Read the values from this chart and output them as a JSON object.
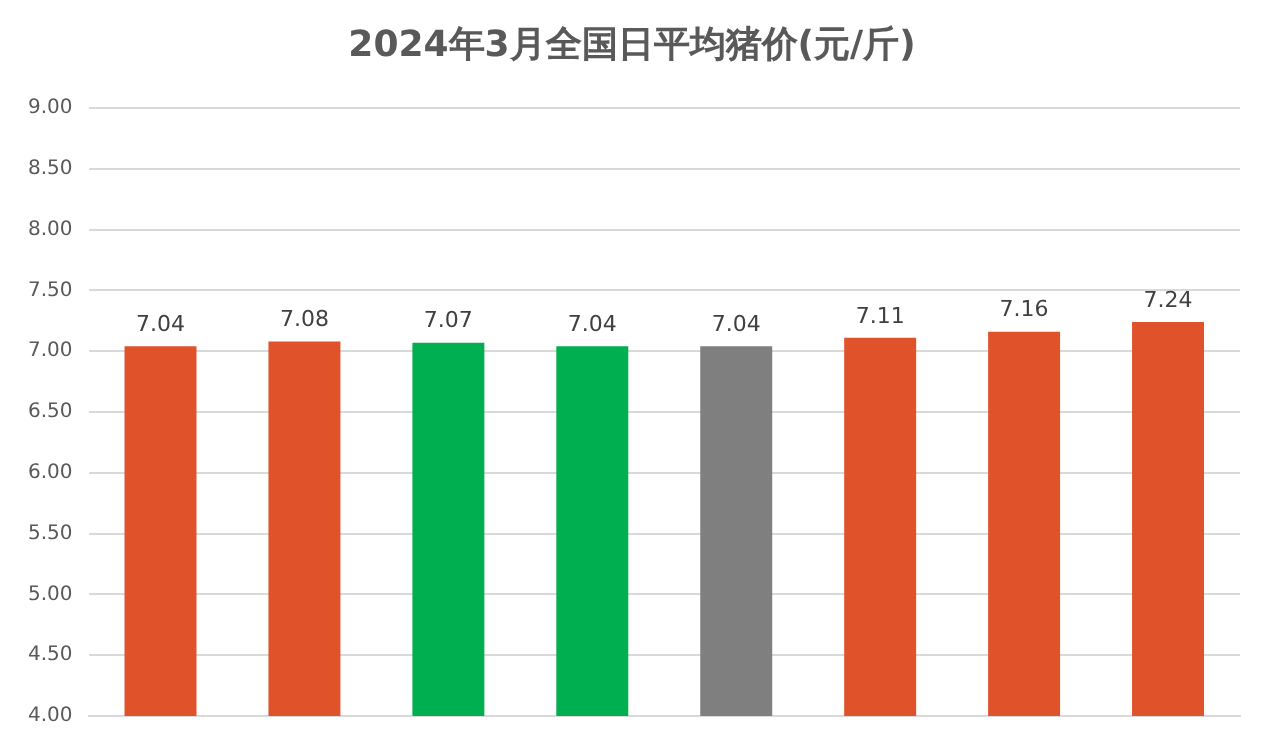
{
  "chart_data": {
    "type": "bar",
    "title": "2024年3月全国日平均猪价(元/斤)",
    "categories": [
      null,
      null,
      null,
      null,
      null,
      null,
      null,
      null
    ],
    "values": [
      7.04,
      7.08,
      7.07,
      7.04,
      7.04,
      7.11,
      7.16,
      7.24
    ],
    "colors": [
      "#e0522a",
      "#e0522a",
      "#00b050",
      "#00b050",
      "#7f7f7f",
      "#e0522a",
      "#e0522a",
      "#e0522a"
    ],
    "ylim": [
      4,
      9
    ],
    "yticks": [
      {
        "value": 4,
        "label": "4.00"
      },
      {
        "value": 4.5,
        "label": "4.50"
      },
      {
        "value": 5,
        "label": "5.00"
      },
      {
        "value": 5.5,
        "label": "5.50"
      },
      {
        "value": 6,
        "label": "6.00"
      },
      {
        "value": 6.5,
        "label": "6.50"
      },
      {
        "value": 7,
        "label": "7.00"
      },
      {
        "value": 7.5,
        "label": "7.50"
      },
      {
        "value": 8,
        "label": "8.00"
      },
      {
        "value": 8.5,
        "label": "8.50"
      },
      {
        "value": 9,
        "label": "9.00"
      }
    ],
    "grid": true,
    "data_labels": true,
    "legend": false
  }
}
